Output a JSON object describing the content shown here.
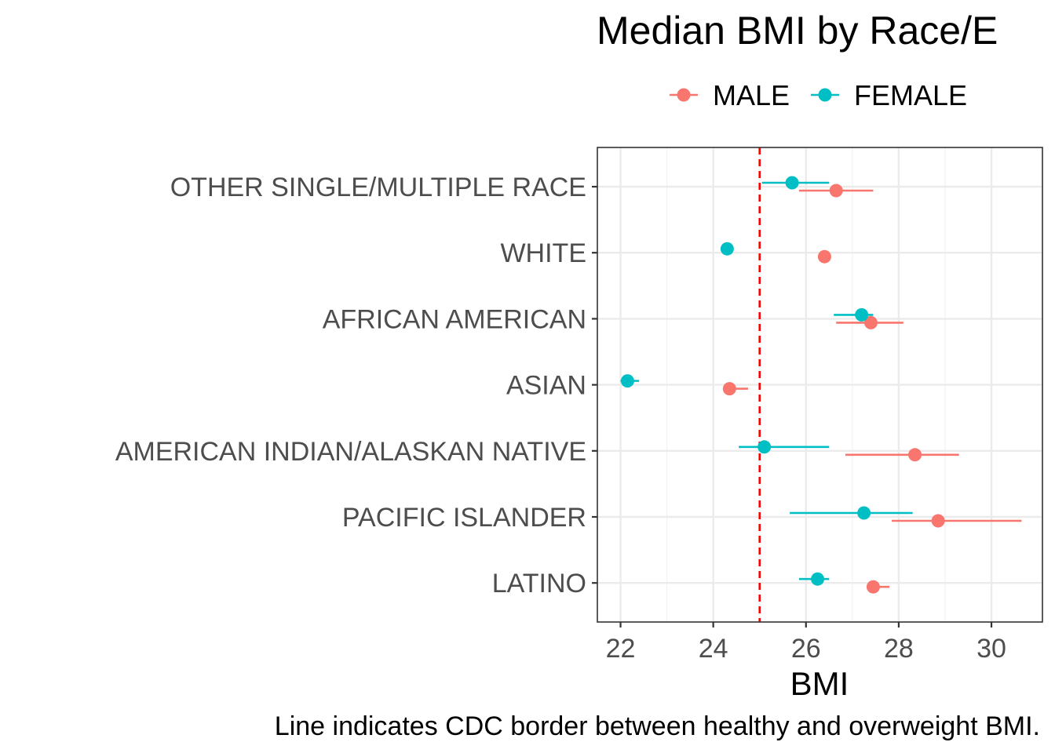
{
  "chart_data": {
    "type": "scatter",
    "title": "Median BMI by Race/E",
    "xlabel": "BMI",
    "ylabel": "",
    "caption": "Line indicates CDC border between healthy and overweight BMI.",
    "xlim": [
      21.5,
      31.1
    ],
    "xticks": [
      22,
      24,
      26,
      28,
      30
    ],
    "categories": [
      "OTHER SINGLE/MULTIPLE RACE",
      "WHITE",
      "AFRICAN AMERICAN",
      "ASIAN",
      "AMERICAN INDIAN/ALASKAN NATIVE",
      "PACIFIC ISLANDER",
      "LATINO"
    ],
    "reference_line": {
      "x": 25,
      "color": "#ff0000",
      "style": "dashed"
    },
    "grid": true,
    "legend": {
      "position": "top"
    },
    "series": [
      {
        "name": "MALE",
        "color": "#f8766d",
        "points": [
          {
            "category": "OTHER SINGLE/MULTIPLE RACE",
            "value": 26.65,
            "low": 25.85,
            "high": 27.45
          },
          {
            "category": "WHITE",
            "value": 26.4,
            "low": 26.4,
            "high": 26.4
          },
          {
            "category": "AFRICAN AMERICAN",
            "value": 27.4,
            "low": 26.65,
            "high": 28.1
          },
          {
            "category": "ASIAN",
            "value": 24.35,
            "low": 24.35,
            "high": 24.75
          },
          {
            "category": "AMERICAN INDIAN/ALASKAN NATIVE",
            "value": 28.35,
            "low": 26.85,
            "high": 29.3
          },
          {
            "category": "PACIFIC ISLANDER",
            "value": 28.85,
            "low": 27.85,
            "high": 30.65
          },
          {
            "category": "LATINO",
            "value": 27.45,
            "low": 27.45,
            "high": 27.8
          }
        ]
      },
      {
        "name": "FEMALE",
        "color": "#00bfc4",
        "points": [
          {
            "category": "OTHER SINGLE/MULTIPLE RACE",
            "value": 25.7,
            "low": 25.05,
            "high": 26.5
          },
          {
            "category": "WHITE",
            "value": 24.3,
            "low": 24.3,
            "high": 24.3
          },
          {
            "category": "AFRICAN AMERICAN",
            "value": 27.2,
            "low": 26.6,
            "high": 27.45
          },
          {
            "category": "ASIAN",
            "value": 22.15,
            "low": 22.0,
            "high": 22.4
          },
          {
            "category": "AMERICAN INDIAN/ALASKAN NATIVE",
            "value": 25.1,
            "low": 24.55,
            "high": 26.5
          },
          {
            "category": "PACIFIC ISLANDER",
            "value": 27.25,
            "low": 25.65,
            "high": 28.3
          },
          {
            "category": "LATINO",
            "value": 26.25,
            "low": 25.85,
            "high": 26.5
          }
        ]
      }
    ]
  }
}
